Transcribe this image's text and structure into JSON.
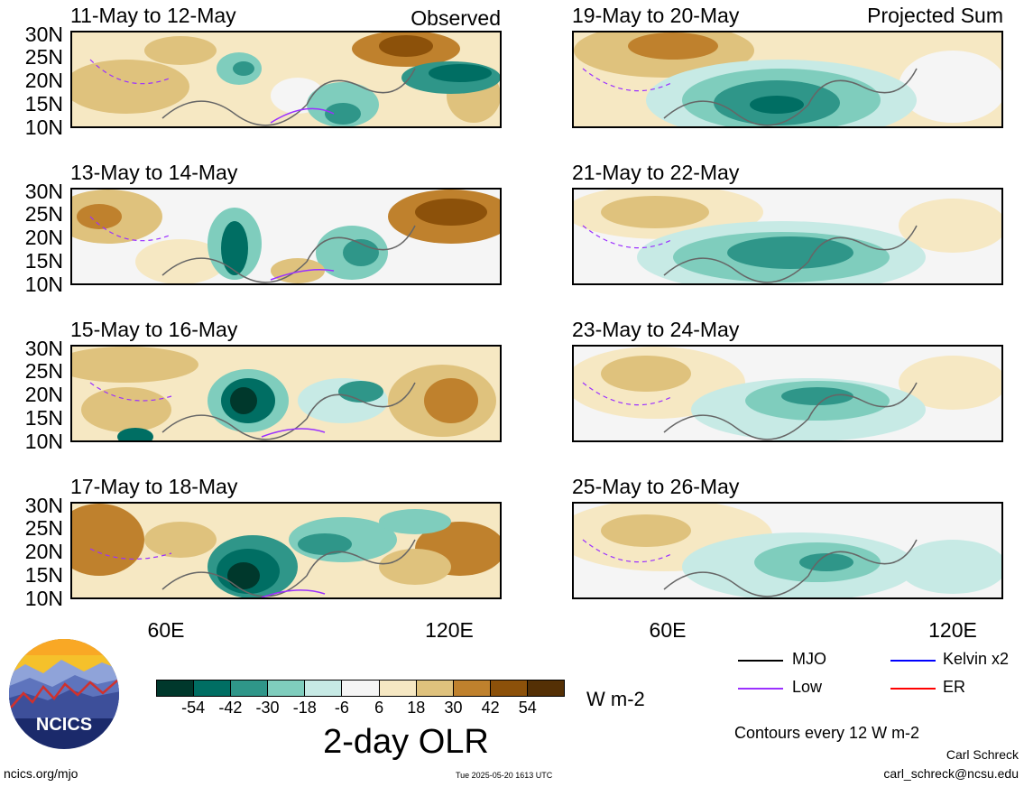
{
  "panels_left": [
    {
      "title": "11-May to 12-May",
      "label": "Observed"
    },
    {
      "title": "13-May to 14-May",
      "label": ""
    },
    {
      "title": "15-May to 16-May",
      "label": ""
    },
    {
      "title": "17-May to 18-May",
      "label": ""
    }
  ],
  "panels_right": [
    {
      "title": "19-May to 20-May",
      "label": "Projected Sum"
    },
    {
      "title": "21-May to 22-May",
      "label": ""
    },
    {
      "title": "23-May to 24-May",
      "label": ""
    },
    {
      "title": "25-May to 26-May",
      "label": ""
    }
  ],
  "lat_ticks": [
    "30N",
    "25N",
    "20N",
    "15N",
    "10N"
  ],
  "lon_ticks": [
    "60E",
    "120E"
  ],
  "colorbar": {
    "labels": [
      "-54",
      "-42",
      "-30",
      "-18",
      "-6",
      "6",
      "18",
      "30",
      "42",
      "54"
    ],
    "colors": [
      "#00382c",
      "#006e63",
      "#2f9689",
      "#7fcdbd",
      "#c7eae5",
      "#f5f5f5",
      "#f6e8c3",
      "#dfc27d",
      "#bf812d",
      "#8c510a",
      "#543005"
    ],
    "units": "W m-2",
    "title": "2-day OLR"
  },
  "legend": {
    "mjo": "MJO",
    "kelvin": "Kelvin x2",
    "low": "Low",
    "er": "ER",
    "contours": "Contours every 12 W m-2",
    "colors": {
      "mjo": "#000000",
      "kelvin": "#0000ff",
      "low": "#9b30ff",
      "er": "#ff0000"
    }
  },
  "logo": {
    "text": "NCICS"
  },
  "footer": {
    "url": "ncics.org/mjo",
    "timestamp": "Tue 2025-05-20 1613 UTC",
    "author": "Carl Schreck",
    "email": "carl_schreck@ncsu.edu"
  }
}
